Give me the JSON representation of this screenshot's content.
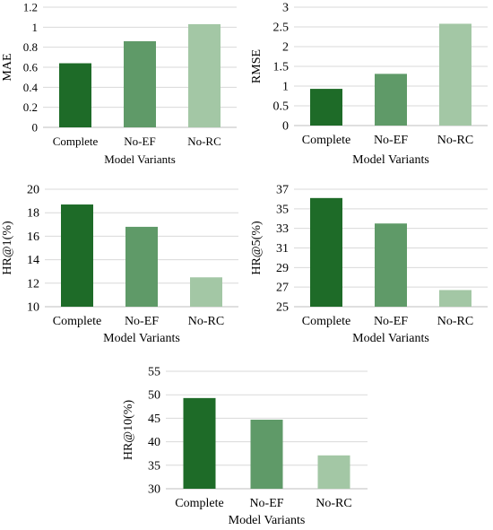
{
  "chart_data": [
    {
      "type": "bar",
      "categories": [
        "Complete",
        "No-EF",
        "No-RC"
      ],
      "values": [
        0.64,
        0.86,
        1.03
      ],
      "xlabel": "Model Variants",
      "ylabel": "MAE",
      "ylim": [
        0,
        1.2
      ],
      "yticks": [
        0,
        0.2,
        0.4,
        0.6,
        0.8,
        1,
        1.2
      ],
      "yticklabels": [
        "0",
        "0.2",
        "0.4",
        "0.6",
        "0.8",
        "1",
        "1.2"
      ],
      "grid": true,
      "colors": [
        "#1e6b28",
        "#5f9a68",
        "#a3c7a5"
      ]
    },
    {
      "type": "bar",
      "categories": [
        "Complete",
        "No-EF",
        "No-RC"
      ],
      "values": [
        0.93,
        1.31,
        2.58
      ],
      "xlabel": "Model Variants",
      "ylabel": "RMSE",
      "ylim": [
        0,
        3
      ],
      "yticks": [
        0,
        0.5,
        1,
        1.5,
        2,
        2.5,
        3
      ],
      "yticklabels": [
        "0",
        "0.5",
        "1",
        "1.5",
        "2",
        "2.5",
        "3"
      ],
      "grid": true,
      "colors": [
        "#1e6b28",
        "#5f9a68",
        "#a3c7a5"
      ]
    },
    {
      "type": "bar",
      "categories": [
        "Complete",
        "No-EF",
        "No-RC"
      ],
      "values": [
        18.7,
        16.8,
        12.5
      ],
      "xlabel": "Model Variants",
      "ylabel": "HR@1(%)",
      "ylim": [
        10,
        20
      ],
      "yticks": [
        10,
        12,
        14,
        16,
        18,
        20
      ],
      "yticklabels": [
        "10",
        "12",
        "14",
        "16",
        "18",
        "20"
      ],
      "grid": true,
      "colors": [
        "#1e6b28",
        "#5f9a68",
        "#a3c7a5"
      ]
    },
    {
      "type": "bar",
      "categories": [
        "Complete",
        "No-EF",
        "No-RC"
      ],
      "values": [
        36.1,
        33.5,
        26.7
      ],
      "xlabel": "Model Variants",
      "ylabel": "HR@5(%)",
      "ylim": [
        25,
        37
      ],
      "yticks": [
        25,
        27,
        29,
        31,
        33,
        35,
        37
      ],
      "yticklabels": [
        "25",
        "27",
        "29",
        "31",
        "33",
        "35",
        "37"
      ],
      "grid": true,
      "colors": [
        "#1e6b28",
        "#5f9a68",
        "#a3c7a5"
      ]
    },
    {
      "type": "bar",
      "categories": [
        "Complete",
        "No-EF",
        "No-RC"
      ],
      "values": [
        49.3,
        44.7,
        37.1
      ],
      "xlabel": "Model Variants",
      "ylabel": "HR@10(%)",
      "ylim": [
        30,
        55
      ],
      "yticks": [
        30,
        35,
        40,
        45,
        50,
        55
      ],
      "yticklabels": [
        "30",
        "35",
        "40",
        "45",
        "50",
        "55"
      ],
      "grid": true,
      "colors": [
        "#1e6b28",
        "#5f9a68",
        "#a3c7a5"
      ]
    }
  ]
}
